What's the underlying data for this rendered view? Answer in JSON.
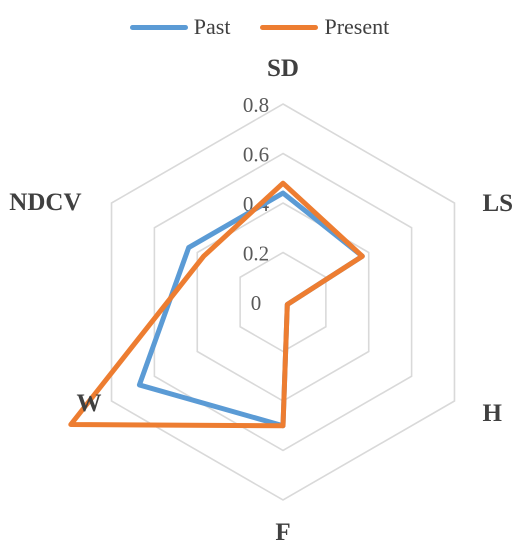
{
  "chart_data": {
    "type": "radar",
    "axes": [
      "SD",
      "LS",
      "H",
      "F",
      "W",
      "NDCV"
    ],
    "rlim": [
      0,
      0.8
    ],
    "ticks": [
      "0",
      "0.2",
      "0.4",
      "0.6",
      "0.8"
    ],
    "series": [
      {
        "name": "Past",
        "color": "#5B9BD5",
        "values": [
          0.44,
          0.37,
          0.02,
          0.5,
          0.67,
          0.44
        ]
      },
      {
        "name": "Present",
        "color": "#ED7D31",
        "values": [
          0.48,
          0.37,
          0.02,
          0.5,
          0.99,
          0.37
        ]
      }
    ],
    "legend_position": "top",
    "grid": true
  }
}
